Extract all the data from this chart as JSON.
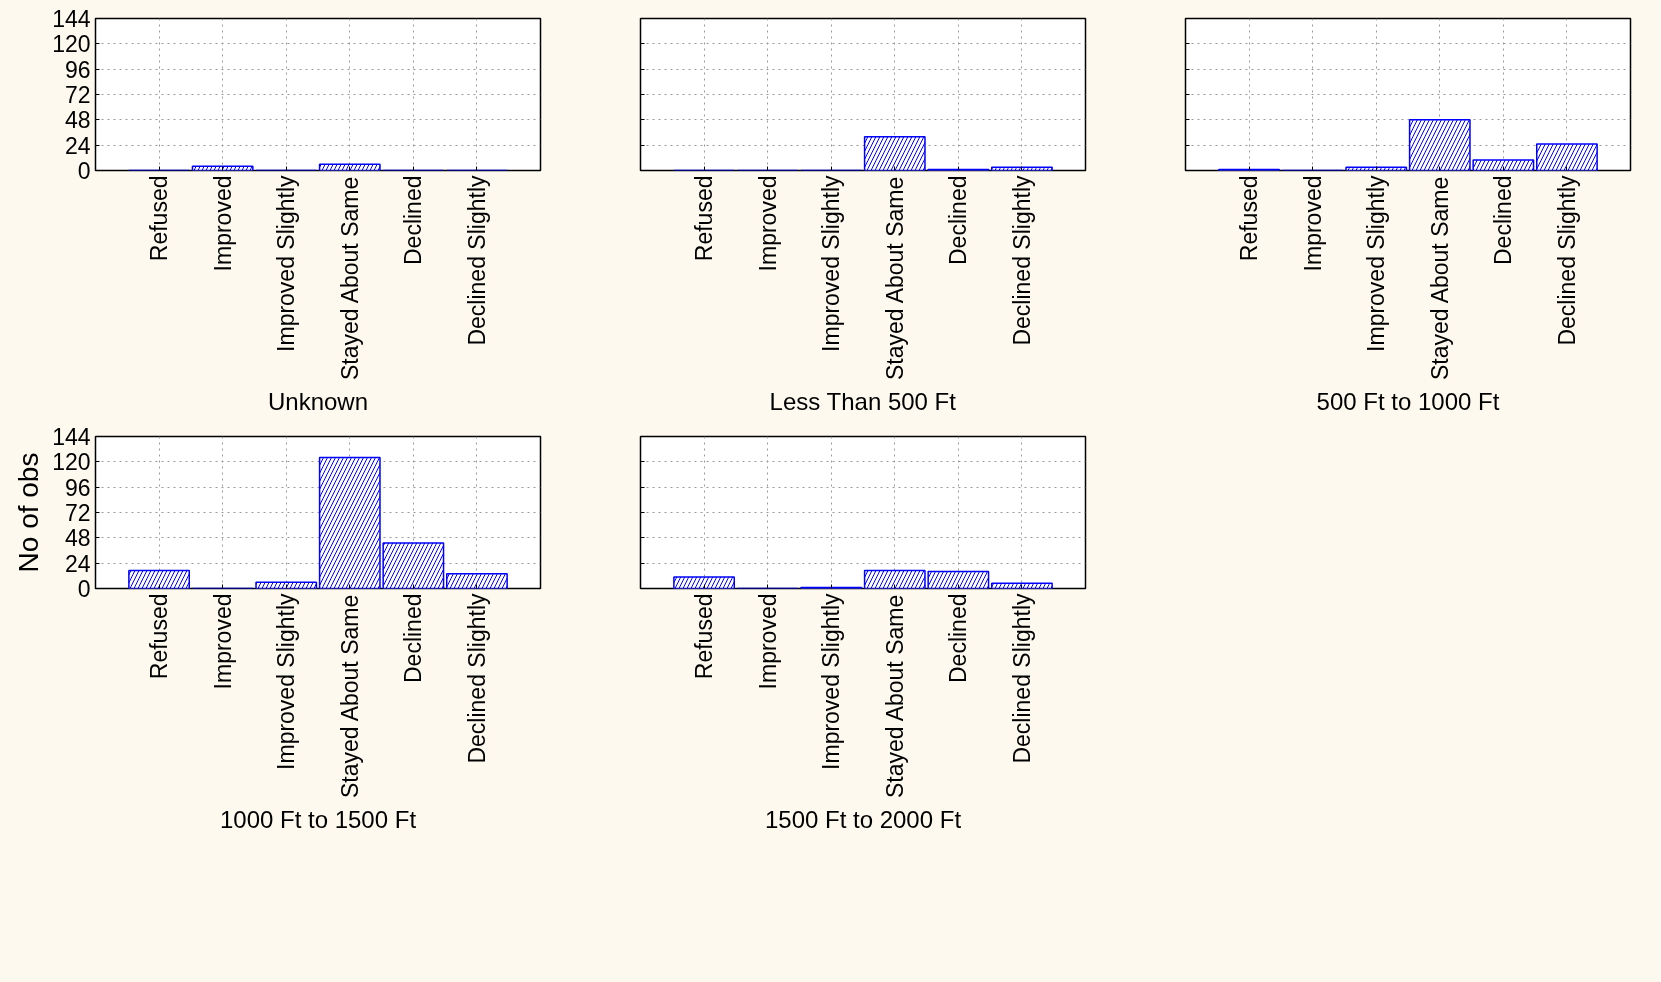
{
  "chart_data": [
    {
      "type": "bar",
      "xlabel": "Unknown",
      "categories": [
        "Refused",
        "Improved",
        "Improved Slightly",
        "Stayed About Same",
        "Declined",
        "Declined Slightly"
      ],
      "values": [
        0,
        4,
        0,
        6,
        0,
        0
      ],
      "color": "#0000ff",
      "ylim": [
        0,
        144
      ],
      "yticks": [
        0,
        24,
        48,
        72,
        96,
        120,
        144
      ],
      "grid": true
    },
    {
      "type": "bar",
      "xlabel": "Less Than 500 Ft",
      "categories": [
        "Refused",
        "Improved",
        "Improved Slightly",
        "Stayed About Same",
        "Declined",
        "Declined Slightly"
      ],
      "values": [
        0,
        0,
        0,
        32,
        1,
        3
      ],
      "color": "#0000ff",
      "ylim": [
        0,
        144
      ],
      "yticks": [
        0,
        24,
        48,
        72,
        96,
        120,
        144
      ],
      "grid": true,
      "tick_labels": "x"
    },
    {
      "type": "bar",
      "xlabel": "500 Ft to 1000 Ft",
      "categories": [
        "Refused",
        "Improved",
        "Improved Slightly",
        "Stayed About Same",
        "Declined",
        "Declined Slightly"
      ],
      "values": [
        1,
        0,
        3,
        48,
        10,
        25
      ],
      "color": "#0000ff",
      "ylim": [
        0,
        144
      ],
      "yticks": [
        0,
        24,
        48,
        72,
        96,
        120,
        144
      ],
      "grid": true,
      "tick_labels": "x"
    },
    {
      "type": "bar",
      "xlabel": "1000 Ft to 1500 Ft",
      "ylabel": "No of obs",
      "categories": [
        "Refused",
        "Improved",
        "Improved Slightly",
        "Stayed About Same",
        "Declined",
        "Declined Slightly"
      ],
      "values": [
        17,
        0,
        6,
        124,
        43,
        14
      ],
      "color": "#0000ff",
      "ylim": [
        0,
        144
      ],
      "yticks": [
        0,
        24,
        48,
        72,
        96,
        120,
        144
      ],
      "grid": true
    },
    {
      "type": "bar",
      "xlabel": "1500 Ft to 2000 Ft",
      "categories": [
        "Refused",
        "Improved",
        "Improved Slightly",
        "Stayed About Same",
        "Declined",
        "Declined Slightly"
      ],
      "values": [
        11,
        0,
        1,
        17,
        16,
        5
      ],
      "color": "#0000ff",
      "ylim": [
        0,
        144
      ],
      "yticks": [
        0,
        24,
        48,
        72,
        96,
        120,
        144
      ],
      "grid": true,
      "tick_labels": "x"
    }
  ]
}
